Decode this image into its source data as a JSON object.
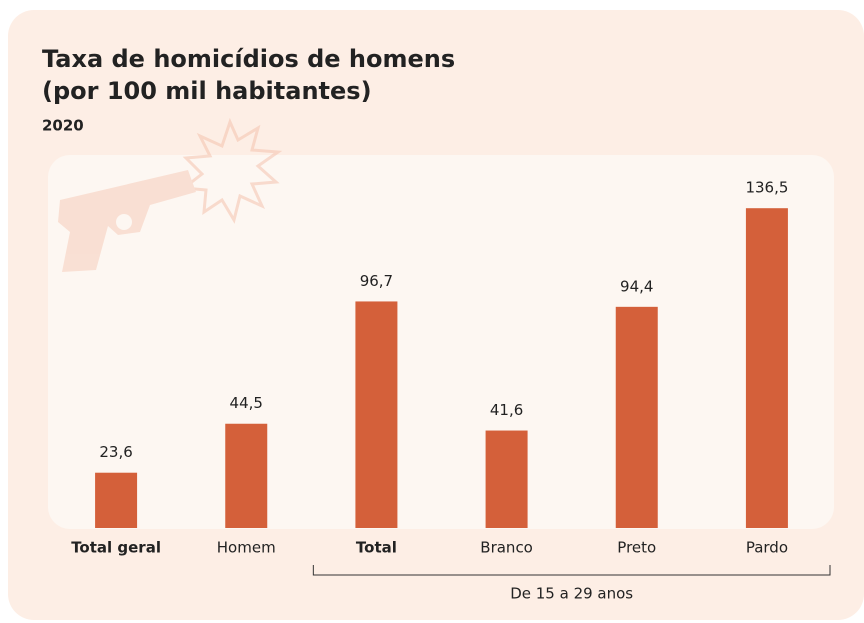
{
  "chart_data": {
    "type": "bar",
    "title": [
      "Taxa de homicídios de homens",
      "(por 100 mil habitantes)"
    ],
    "subtitle": "2020",
    "categories": [
      "Total geral",
      "Homem",
      "Total",
      "Branco",
      "Preto",
      "Pardo"
    ],
    "values": [
      23.6,
      44.5,
      96.7,
      41.6,
      94.4,
      136.5
    ],
    "value_labels": [
      "23,6",
      "44,5",
      "96,7",
      "41,6",
      "94,4",
      "136,5"
    ],
    "color": "#d4603a",
    "ylim": [
      0,
      140
    ],
    "bold_categories": [
      0,
      2
    ],
    "groups": [
      {
        "label": "De 15 a 29 anos",
        "categories": [
          "Total",
          "Branco",
          "Preto",
          "Pardo"
        ]
      }
    ]
  }
}
